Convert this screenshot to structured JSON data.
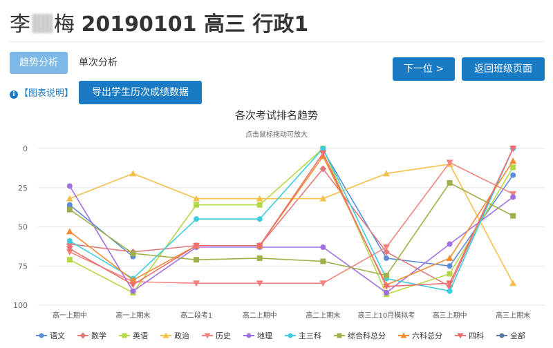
{
  "header": {
    "title_prefix": "李",
    "title_suffix": "梅",
    "title_rest": "20190101 高三 行政1"
  },
  "tabs": [
    {
      "label": "趋势分析",
      "active": true
    },
    {
      "label": "单次分析",
      "active": false
    }
  ],
  "buttons": {
    "next": "下一位 >",
    "back": "返回班级页面",
    "export": "导出学生历次成绩数据"
  },
  "chart_help": "【图表说明】",
  "colors": {
    "accent": "#1a7bc4",
    "active_tab": "#7cb9e8"
  },
  "chart_data": {
    "type": "line",
    "title": "各次考试排名趋势",
    "subtitle": "点击鼠标拖动可放大",
    "x": [
      "高一上期中",
      "高一上期末",
      "高二段考1",
      "高二上期中",
      "高二上期末",
      "高三上10月模拟考",
      "高三上期中",
      "高三上期末"
    ],
    "ylim": [
      0,
      100
    ],
    "y_reversed": true,
    "yticks": [
      0,
      25,
      50,
      75,
      100
    ],
    "legend_position": "bottom",
    "series": [
      {
        "name": "语文",
        "color": "#5b8bd6",
        "marker": "circle",
        "values": [
          36,
          69,
          null,
          null,
          1,
          70,
          75,
          17
        ]
      },
      {
        "name": "数学",
        "color": "#e07a7a",
        "marker": "diamond",
        "values": [
          61,
          66,
          62,
          62,
          13,
          66,
          88,
          0
        ]
      },
      {
        "name": "英语",
        "color": "#b5d846",
        "marker": "square",
        "values": [
          71,
          92,
          36,
          36,
          0,
          93,
          80,
          12
        ]
      },
      {
        "name": "政治",
        "color": "#f5c04a",
        "marker": "triangle",
        "values": [
          32,
          16,
          32,
          32,
          32,
          16,
          10,
          86
        ]
      },
      {
        "name": "历史",
        "color": "#f2847f",
        "marker": "triangle-down",
        "values": [
          66,
          85,
          86,
          86,
          86,
          63,
          9,
          29
        ]
      },
      {
        "name": "地理",
        "color": "#a070e0",
        "marker": "circle",
        "values": [
          24,
          91,
          63,
          63,
          63,
          92,
          61,
          31
        ]
      },
      {
        "name": "主三科",
        "color": "#3ccce0",
        "marker": "circle",
        "values": [
          59,
          83,
          45,
          45,
          0,
          83,
          91,
          0
        ]
      },
      {
        "name": "综合科总分",
        "color": "#a0b04a",
        "marker": "square",
        "values": [
          39,
          67,
          71,
          70,
          72,
          81,
          22,
          43
        ]
      },
      {
        "name": "六科总分",
        "color": "#f58a32",
        "marker": "triangle",
        "values": [
          53,
          84,
          62,
          62,
          5,
          87,
          70,
          8
        ]
      },
      {
        "name": "四科",
        "color": "#ec6e6e",
        "marker": "triangle-down",
        "values": [
          64,
          87,
          62,
          62,
          3,
          88,
          86,
          0
        ]
      },
      {
        "name": "全部",
        "color": "#5878a8",
        "marker": "circle",
        "values": [
          null,
          null,
          null,
          null,
          null,
          null,
          null,
          null
        ]
      }
    ]
  }
}
